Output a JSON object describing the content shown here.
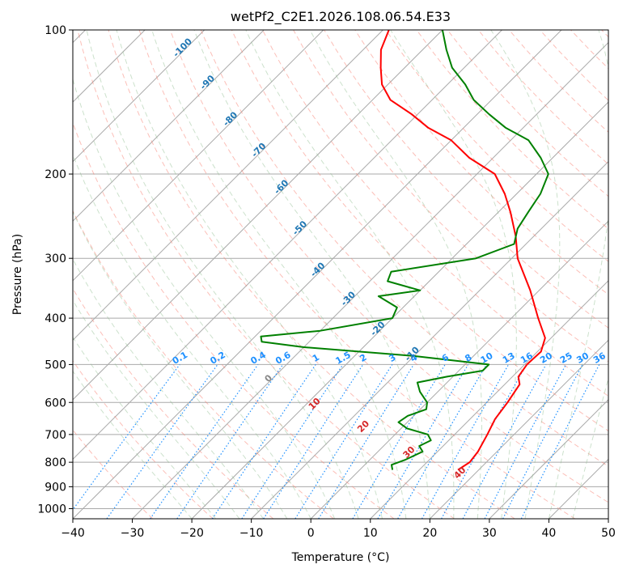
{
  "chart_data": {
    "type": "line",
    "title": "wetPf2_C2E1.2026.108.06.54.E33",
    "xlabel": "Temperature (°C)",
    "ylabel": "Pressure (hPa)",
    "xlim": [
      -40,
      50
    ],
    "ylim": [
      1050,
      100
    ],
    "x_ticks": [
      -40,
      -30,
      -20,
      -10,
      0,
      10,
      20,
      30,
      40,
      50
    ],
    "x_tick_labels": [
      "−40",
      "−30",
      "−20",
      "−10",
      "0",
      "10",
      "20",
      "30",
      "40",
      "50"
    ],
    "y_ticks": [
      1000,
      900,
      800,
      700,
      600,
      500,
      400,
      300,
      200,
      100
    ],
    "y_tick_labels": [
      "1000",
      "900",
      "800",
      "700",
      "600",
      "500",
      "400",
      "300",
      "200",
      "100"
    ],
    "colors": {
      "temperature": "#ff0000",
      "dewpoint": "#008000",
      "isotherm_label": "#1f77b4",
      "mixing_ratio": "#1e90ff",
      "dry_adiabat": "#fa8072",
      "moist_adiabat": "#8fbc8f",
      "wet_bulb_label": "#d62728",
      "grid": "#a9a9a9"
    },
    "isotherm_labels": [
      "-100",
      "-90",
      "-80",
      "-70",
      "-60",
      "-50",
      "-40",
      "-30",
      "-20",
      "-10"
    ],
    "mixing_ratio_labels": [
      "0.1",
      "0.2",
      "0.4",
      "0.6",
      "1",
      "1.5",
      "2",
      "3",
      "4",
      "6",
      "8",
      "10",
      "13",
      "16",
      "20",
      "25",
      "30",
      "36"
    ],
    "wet_bulb_labels": [
      "0",
      "10",
      "20",
      "30",
      "40"
    ],
    "series": [
      {
        "name": "Temperature",
        "pressure": [
          830,
          800,
          760,
          700,
          650,
          600,
          550,
          530,
          500,
          470,
          440,
          400,
          350,
          300,
          270,
          240,
          220,
          200,
          185,
          170,
          160,
          150,
          140,
          130,
          120,
          110,
          100
        ],
        "temperature": [
          16.5,
          17.2,
          16.8,
          15.5,
          14.2,
          13.5,
          12.5,
          11.0,
          10.4,
          10.6,
          9.0,
          4.5,
          -1.5,
          -9.0,
          -13.0,
          -18.0,
          -22.0,
          -27.0,
          -34.0,
          -40.0,
          -46.0,
          -51.0,
          -57.0,
          -61.0,
          -64.0,
          -67.0,
          -69.0
        ]
      },
      {
        "name": "Dewpoint",
        "pressure": [
          830,
          810,
          790,
          760,
          740,
          720,
          700,
          680,
          660,
          640,
          620,
          600,
          570,
          545,
          530,
          515,
          500,
          480,
          460,
          448,
          437,
          425,
          400,
          380,
          360,
          350,
          335,
          320,
          300,
          280,
          260,
          240,
          220,
          200,
          185,
          170,
          160,
          150,
          140,
          130,
          120,
          110,
          100
        ],
        "dewpoint": [
          5.5,
          4.5,
          6.0,
          7.5,
          6.0,
          7.0,
          5.5,
          1.0,
          -1.5,
          -1.0,
          1.0,
          0.0,
          -3.0,
          -5.0,
          -1.0,
          4.0,
          4.0,
          -10.0,
          -30.0,
          -38.0,
          -39.0,
          -30.0,
          -20.0,
          -21.0,
          -26.0,
          -20.0,
          -27.0,
          -28.0,
          -16.0,
          -12.0,
          -14.0,
          -15.0,
          -16.0,
          -18.0,
          -22.0,
          -27.0,
          -33.0,
          -38.0,
          -43.0,
          -47.0,
          -52.0,
          -56.0,
          -60.0
        ]
      }
    ]
  }
}
